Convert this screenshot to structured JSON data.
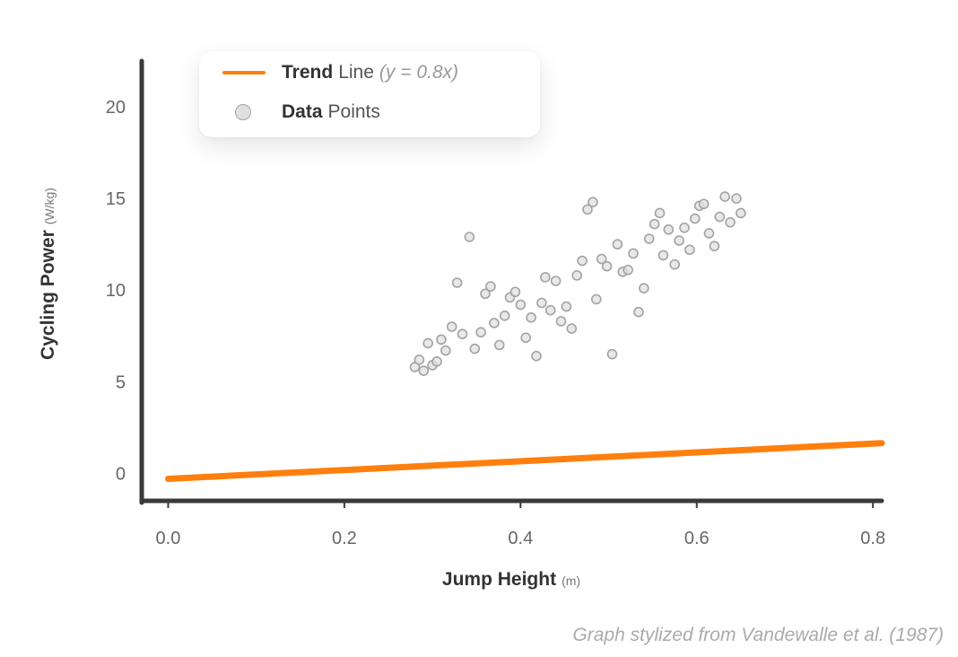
{
  "chart_data": {
    "type": "scatter",
    "xlabel": "Jump Height",
    "xlabel_unit": "(m)",
    "ylabel": "Cycling Power",
    "ylabel_unit": "(W/kg)",
    "xlim": [
      -0.03,
      0.81
    ],
    "ylim": [
      -1.5,
      22.5
    ],
    "xticks": [
      "0.0",
      "0.2",
      "0.4",
      "0.6",
      "0.8"
    ],
    "yticks": [
      "0",
      "5",
      "10",
      "15",
      "20"
    ],
    "grid": false,
    "legend_position": "top-left",
    "legend": {
      "trend_strong": "Trend",
      "trend_rest": "Line",
      "trend_eq": "(y = 0.8x)",
      "points_strong": "Data",
      "points_rest": "Points"
    },
    "trend_line": {
      "name": "Trend Line",
      "slope": 0.8,
      "intercept": 0,
      "x_range": [
        0.0,
        0.81
      ]
    },
    "series": [
      {
        "name": "Data Points",
        "points": [
          [
            0.28,
            5.8
          ],
          [
            0.285,
            6.2
          ],
          [
            0.29,
            5.6
          ],
          [
            0.295,
            7.1
          ],
          [
            0.3,
            5.9
          ],
          [
            0.305,
            6.1
          ],
          [
            0.31,
            7.3
          ],
          [
            0.315,
            6.7
          ],
          [
            0.322,
            8.0
          ],
          [
            0.328,
            10.4
          ],
          [
            0.334,
            7.6
          ],
          [
            0.342,
            12.9
          ],
          [
            0.348,
            6.8
          ],
          [
            0.355,
            7.7
          ],
          [
            0.36,
            9.8
          ],
          [
            0.366,
            10.2
          ],
          [
            0.37,
            8.2
          ],
          [
            0.376,
            7.0
          ],
          [
            0.382,
            8.6
          ],
          [
            0.388,
            9.6
          ],
          [
            0.394,
            9.9
          ],
          [
            0.4,
            9.2
          ],
          [
            0.406,
            7.4
          ],
          [
            0.412,
            8.5
          ],
          [
            0.418,
            6.4
          ],
          [
            0.424,
            9.3
          ],
          [
            0.428,
            10.7
          ],
          [
            0.434,
            8.9
          ],
          [
            0.44,
            10.5
          ],
          [
            0.446,
            8.3
          ],
          [
            0.452,
            9.1
          ],
          [
            0.458,
            7.9
          ],
          [
            0.464,
            10.8
          ],
          [
            0.47,
            11.6
          ],
          [
            0.476,
            14.4
          ],
          [
            0.482,
            14.8
          ],
          [
            0.486,
            9.5
          ],
          [
            0.492,
            11.7
          ],
          [
            0.498,
            11.3
          ],
          [
            0.504,
            6.5
          ],
          [
            0.51,
            12.5
          ],
          [
            0.516,
            11.0
          ],
          [
            0.522,
            11.1
          ],
          [
            0.528,
            12.0
          ],
          [
            0.534,
            8.8
          ],
          [
            0.54,
            10.1
          ],
          [
            0.546,
            12.8
          ],
          [
            0.552,
            13.6
          ],
          [
            0.558,
            14.2
          ],
          [
            0.562,
            11.9
          ],
          [
            0.568,
            13.3
          ],
          [
            0.575,
            11.4
          ],
          [
            0.58,
            12.7
          ],
          [
            0.586,
            13.4
          ],
          [
            0.592,
            12.2
          ],
          [
            0.598,
            13.9
          ],
          [
            0.603,
            14.6
          ],
          [
            0.608,
            14.7
          ],
          [
            0.614,
            13.1
          ],
          [
            0.62,
            12.4
          ],
          [
            0.626,
            14.0
          ],
          [
            0.632,
            15.1
          ],
          [
            0.638,
            13.7
          ],
          [
            0.645,
            15.0
          ],
          [
            0.65,
            14.2
          ]
        ]
      }
    ]
  },
  "caption": "Graph stylized from Vandewalle et al. (1987)",
  "colors": {
    "trend": "#ff7f0e",
    "axis": "#3a3a3a",
    "point_fill": "#e0e0e0",
    "point_stroke": "#a3a3a3"
  }
}
